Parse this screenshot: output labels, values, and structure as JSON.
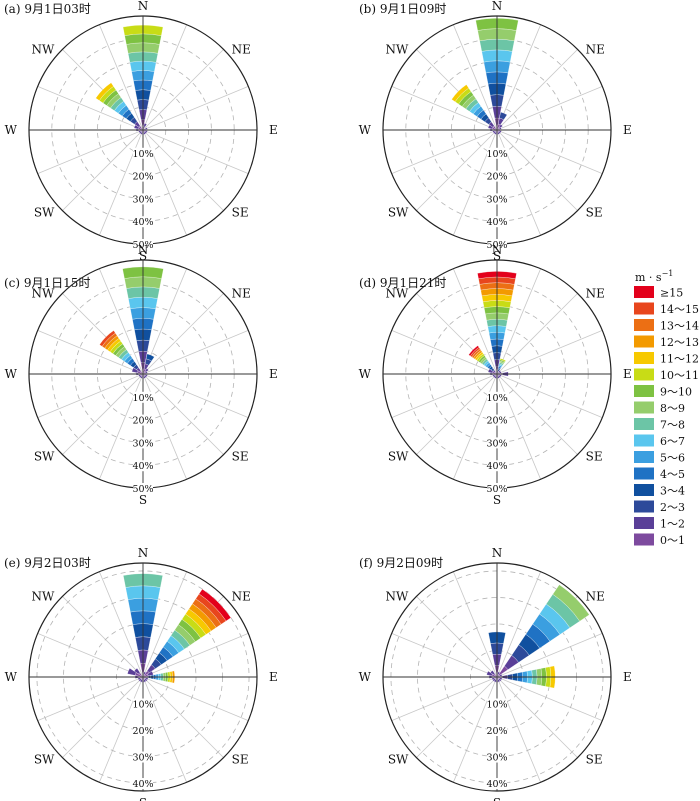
{
  "chart_data": {
    "type": "wind-rose",
    "units": "m · s⁻¹",
    "direction_labels": [
      "N",
      "NE",
      "E",
      "SE",
      "S",
      "SW",
      "W",
      "NW"
    ],
    "legend": {
      "title": "m · s",
      "title_superscript": "−1",
      "bins": [
        {
          "label": "≥15",
          "color": "#e3001b"
        },
        {
          "label": "14～15",
          "color": "#e8461d"
        },
        {
          "label": "13～14",
          "color": "#ec6f14"
        },
        {
          "label": "12～13",
          "color": "#f39a00"
        },
        {
          "label": "11～12",
          "color": "#f7c900"
        },
        {
          "label": "10～11",
          "color": "#c8dc16"
        },
        {
          "label": "9～10",
          "color": "#7ec242"
        },
        {
          "label": "8～9",
          "color": "#95cd6c"
        },
        {
          "label": "7～8",
          "color": "#6cc5a6"
        },
        {
          "label": "6～7",
          "color": "#5ac6ee"
        },
        {
          "label": "5～6",
          "color": "#3b9fe0"
        },
        {
          "label": "4～5",
          "color": "#1f72c4"
        },
        {
          "label": "3～4",
          "color": "#10509f"
        },
        {
          "label": "2～3",
          "color": "#2d4a9a"
        },
        {
          "label": "1～2",
          "color": "#5a3f98"
        },
        {
          "label": "0～1",
          "color": "#7d4a9e"
        }
      ]
    },
    "panels": [
      {
        "title": "(a)  9月1日03时",
        "rings": [
          10,
          20,
          30,
          40,
          50
        ],
        "ring_labels": [
          "10%",
          "20%",
          "30%",
          "40%",
          "50%"
        ],
        "rmax": 50,
        "sectors": [
          {
            "dir": 0,
            "total": 46,
            "top_bin": 5
          },
          {
            "dir": 22.5,
            "total": 3,
            "top_bin": 14
          },
          {
            "dir": 67.5,
            "total": 2,
            "top_bin": 14
          },
          {
            "dir": 90,
            "total": 2,
            "top_bin": 14
          },
          {
            "dir": 112.5,
            "total": 2,
            "top_bin": 14
          },
          {
            "dir": 135,
            "total": 2,
            "top_bin": 14
          },
          {
            "dir": 157.5,
            "total": 2,
            "top_bin": 14
          },
          {
            "dir": 180,
            "total": 2,
            "top_bin": 14
          },
          {
            "dir": 202.5,
            "total": 2,
            "top_bin": 14
          },
          {
            "dir": 225,
            "total": 2,
            "top_bin": 14
          },
          {
            "dir": 247.5,
            "total": 2,
            "top_bin": 14
          },
          {
            "dir": 270,
            "total": 3,
            "top_bin": 14
          },
          {
            "dir": 292.5,
            "total": 4,
            "top_bin": 14
          },
          {
            "dir": 315,
            "total": 25,
            "top_bin": 4
          }
        ]
      },
      {
        "title": "(b)  9月1日09时",
        "rings": [
          10,
          20,
          30,
          40,
          50
        ],
        "ring_labels": [
          "10%",
          "20%",
          "30%",
          "40%",
          "50%"
        ],
        "rmax": 50,
        "sectors": [
          {
            "dir": 0,
            "total": 49,
            "top_bin": 6
          },
          {
            "dir": 22.5,
            "total": 8,
            "top_bin": 13
          },
          {
            "dir": 45,
            "total": 3,
            "top_bin": 14
          },
          {
            "dir": 67.5,
            "total": 2,
            "top_bin": 14
          },
          {
            "dir": 90,
            "total": 2,
            "top_bin": 14
          },
          {
            "dir": 112.5,
            "total": 2,
            "top_bin": 14
          },
          {
            "dir": 135,
            "total": 2,
            "top_bin": 14
          },
          {
            "dir": 157.5,
            "total": 2,
            "top_bin": 14
          },
          {
            "dir": 180,
            "total": 2,
            "top_bin": 14
          },
          {
            "dir": 202.5,
            "total": 2,
            "top_bin": 14
          },
          {
            "dir": 225,
            "total": 2,
            "top_bin": 14
          },
          {
            "dir": 247.5,
            "total": 2,
            "top_bin": 14
          },
          {
            "dir": 270,
            "total": 3,
            "top_bin": 14
          },
          {
            "dir": 292.5,
            "total": 4,
            "top_bin": 14
          },
          {
            "dir": 315,
            "total": 24,
            "top_bin": 4
          }
        ]
      },
      {
        "title": "(c)  9月1日15时",
        "rings": [
          10,
          20,
          30,
          40,
          50
        ],
        "ring_labels": [
          "10%",
          "20%",
          "30%",
          "40%",
          "50%"
        ],
        "rmax": 50,
        "sectors": [
          {
            "dir": 0,
            "total": 47,
            "top_bin": 6
          },
          {
            "dir": 22.5,
            "total": 9,
            "top_bin": 12
          },
          {
            "dir": 45,
            "total": 3,
            "top_bin": 14
          },
          {
            "dir": 67.5,
            "total": 2,
            "top_bin": 14
          },
          {
            "dir": 90,
            "total": 2,
            "top_bin": 14
          },
          {
            "dir": 112.5,
            "total": 2,
            "top_bin": 14
          },
          {
            "dir": 135,
            "total": 2,
            "top_bin": 14
          },
          {
            "dir": 157.5,
            "total": 2,
            "top_bin": 14
          },
          {
            "dir": 180,
            "total": 2,
            "top_bin": 14
          },
          {
            "dir": 202.5,
            "total": 2,
            "top_bin": 14
          },
          {
            "dir": 225,
            "total": 2,
            "top_bin": 14
          },
          {
            "dir": 247.5,
            "total": 2,
            "top_bin": 14
          },
          {
            "dir": 270,
            "total": 3,
            "top_bin": 14
          },
          {
            "dir": 292.5,
            "total": 5,
            "top_bin": 14
          },
          {
            "dir": 315,
            "total": 23,
            "top_bin": 1
          }
        ]
      },
      {
        "title": "(d)  9月1日21时",
        "rings": [
          10,
          20,
          30,
          40,
          50
        ],
        "ring_labels": [
          "10%",
          "20%",
          "30%",
          "40%",
          "50%"
        ],
        "rmax": 50,
        "sectors": [
          {
            "dir": 0,
            "total": 45,
            "top_bin": 0
          },
          {
            "dir": 22.5,
            "total": 7,
            "top_bin": 5
          },
          {
            "dir": 45,
            "total": 2,
            "top_bin": 14
          },
          {
            "dir": 67.5,
            "total": 2,
            "top_bin": 14
          },
          {
            "dir": 90,
            "total": 5,
            "top_bin": 14
          },
          {
            "dir": 112.5,
            "total": 2,
            "top_bin": 14
          },
          {
            "dir": 135,
            "total": 2,
            "top_bin": 14
          },
          {
            "dir": 157.5,
            "total": 2,
            "top_bin": 14
          },
          {
            "dir": 180,
            "total": 2,
            "top_bin": 14
          },
          {
            "dir": 202.5,
            "total": 2,
            "top_bin": 14
          },
          {
            "dir": 225,
            "total": 2,
            "top_bin": 14
          },
          {
            "dir": 247.5,
            "total": 2,
            "top_bin": 14
          },
          {
            "dir": 270,
            "total": 3,
            "top_bin": 14
          },
          {
            "dir": 292.5,
            "total": 4,
            "top_bin": 14
          },
          {
            "dir": 315,
            "total": 15,
            "top_bin": 0
          }
        ]
      },
      {
        "title": "(e)  9月2日03时",
        "rings": [
          10,
          20,
          30,
          40
        ],
        "ring_labels": [
          "10%",
          "20%",
          "30%",
          "40%"
        ],
        "rmax": 43,
        "sectors": [
          {
            "dir": 0,
            "total": 39,
            "top_bin": 8
          },
          {
            "dir": 22.5,
            "total": 2,
            "top_bin": 14
          },
          {
            "dir": 45,
            "total": 40,
            "top_bin": 0
          },
          {
            "dir": 67.5,
            "total": 4,
            "top_bin": 14
          },
          {
            "dir": 90,
            "total": 12,
            "top_bin": 3
          },
          {
            "dir": 112.5,
            "total": 2,
            "top_bin": 14
          },
          {
            "dir": 135,
            "total": 2,
            "top_bin": 14
          },
          {
            "dir": 157.5,
            "total": 2,
            "top_bin": 14
          },
          {
            "dir": 180,
            "total": 2,
            "top_bin": 14
          },
          {
            "dir": 202.5,
            "total": 2,
            "top_bin": 14
          },
          {
            "dir": 225,
            "total": 2,
            "top_bin": 14
          },
          {
            "dir": 247.5,
            "total": 2,
            "top_bin": 14
          },
          {
            "dir": 270,
            "total": 3,
            "top_bin": 14
          },
          {
            "dir": 292.5,
            "total": 6,
            "top_bin": 14
          },
          {
            "dir": 315,
            "total": 4,
            "top_bin": 14
          }
        ]
      },
      {
        "title": "(f)  9月2日09时",
        "rings": [
          10,
          20,
          30,
          40
        ],
        "ring_labels": [
          "10%",
          "20%",
          "30%",
          "40%"
        ],
        "rmax": 43,
        "sectors": [
          {
            "dir": 0,
            "total": 17,
            "top_bin": 12
          },
          {
            "dir": 22.5,
            "total": 2,
            "top_bin": 14
          },
          {
            "dir": 45,
            "total": 42,
            "top_bin": 7
          },
          {
            "dir": 67.5,
            "total": 2,
            "top_bin": 14
          },
          {
            "dir": 90,
            "total": 22,
            "top_bin": 4
          },
          {
            "dir": 112.5,
            "total": 2,
            "top_bin": 14
          },
          {
            "dir": 135,
            "total": 2,
            "top_bin": 14
          },
          {
            "dir": 157.5,
            "total": 2,
            "top_bin": 14
          },
          {
            "dir": 180,
            "total": 2,
            "top_bin": 14
          },
          {
            "dir": 202.5,
            "total": 2,
            "top_bin": 14
          },
          {
            "dir": 225,
            "total": 2,
            "top_bin": 14
          },
          {
            "dir": 247.5,
            "total": 2,
            "top_bin": 14
          },
          {
            "dir": 270,
            "total": 3,
            "top_bin": 14
          },
          {
            "dir": 292.5,
            "total": 4,
            "top_bin": 14
          },
          {
            "dir": 315,
            "total": 3,
            "top_bin": 14
          }
        ]
      }
    ]
  }
}
